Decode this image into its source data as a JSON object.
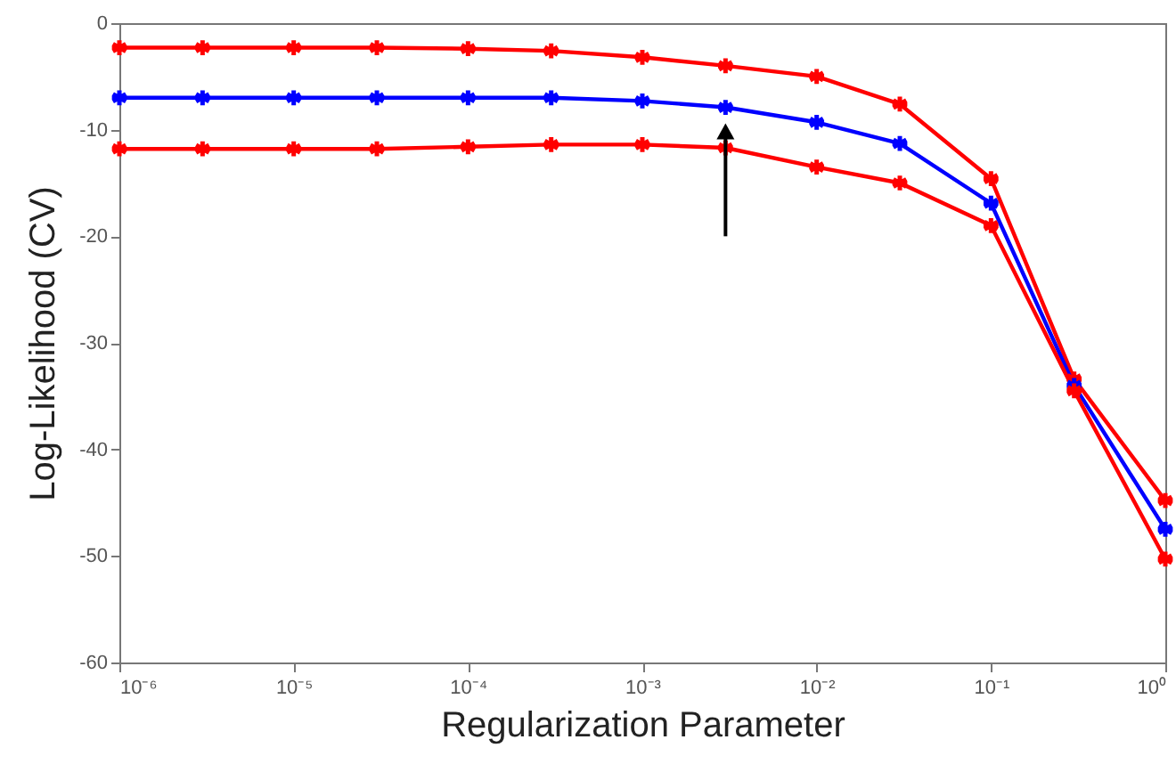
{
  "chart_data": {
    "type": "line",
    "xlabel": "Regularization Parameter",
    "ylabel": "Log-Likelihood (CV)",
    "x": [
      1e-06,
      3e-06,
      1e-05,
      3e-05,
      0.0001,
      0.0003,
      0.001,
      0.003,
      0.01,
      0.03,
      0.1,
      0.3,
      1
    ],
    "series": [
      {
        "color": "#ff0000",
        "values": [
          -2.3,
          -2.3,
          -2.3,
          -2.3,
          -2.4,
          -2.6,
          -3.2,
          -4.0,
          -5.0,
          -7.6,
          -14.6,
          -33.4,
          -44.8
        ]
      },
      {
        "color": "#0000ff",
        "values": [
          -7.0,
          -7.0,
          -7.0,
          -7.0,
          -7.0,
          -7.0,
          -7.3,
          -7.9,
          -9.3,
          -11.3,
          -16.9,
          -34.0,
          -47.5
        ]
      },
      {
        "color": "#ff0000",
        "values": [
          -11.8,
          -11.8,
          -11.8,
          -11.8,
          -11.6,
          -11.4,
          -11.4,
          -11.7,
          -13.5,
          -15.0,
          -19.0,
          -34.5,
          -50.3
        ]
      }
    ],
    "log": "x",
    "xlim": [
      1e-06,
      1
    ],
    "ylim": [
      -60,
      0
    ],
    "xticks": [
      {
        "value": 1e-06,
        "label": "10⁻⁶"
      },
      {
        "value": 1e-05,
        "label": "10⁻⁵"
      },
      {
        "value": 0.0001,
        "label": "10⁻⁴"
      },
      {
        "value": 0.001,
        "label": "10⁻³"
      },
      {
        "value": 0.01,
        "label": "10⁻²"
      },
      {
        "value": 0.1,
        "label": "10⁻¹"
      },
      {
        "value": 1,
        "label": "10⁰"
      }
    ],
    "yticks": [
      -60,
      -50,
      -40,
      -30,
      -20,
      -10,
      0
    ],
    "marker": "cross",
    "line_style": "solid",
    "grid": false
  }
}
